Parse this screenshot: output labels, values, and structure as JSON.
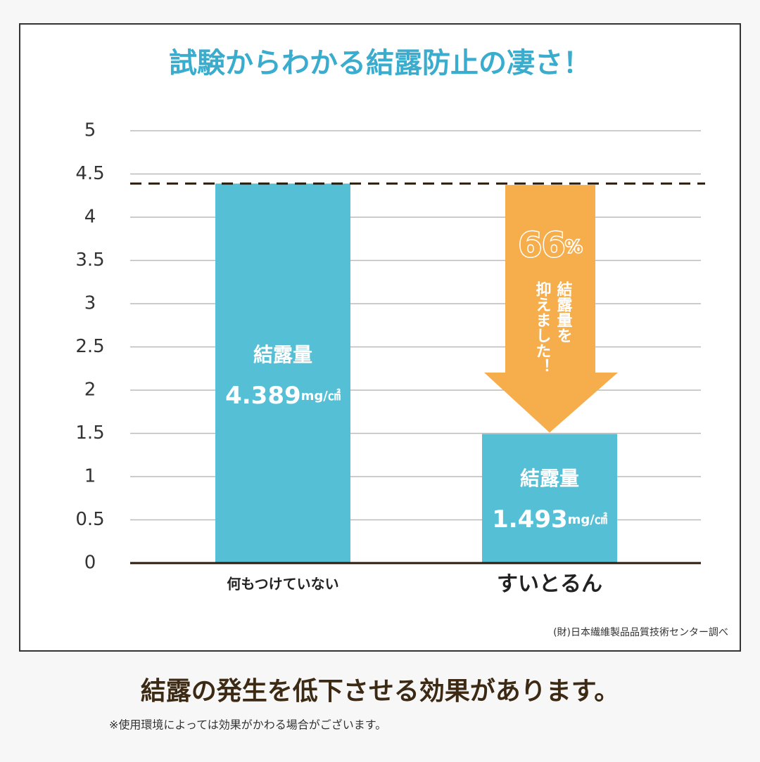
{
  "chart_data": {
    "type": "bar",
    "title": "試験からわかる結露防止の凄さ！",
    "categories": [
      "何もつけていない",
      "すいとるん"
    ],
    "values": [
      4.389,
      1.493
    ],
    "bar_label": "結露量",
    "value_unit": "mg/㎠",
    "color": "#55bfd6",
    "ylim": [
      0,
      5
    ],
    "yticks": [
      0,
      0.5,
      1,
      1.5,
      2,
      2.5,
      3,
      3.5,
      4,
      4.5,
      5
    ],
    "grid": true,
    "annotation": {
      "value": 66,
      "unit": "%",
      "text_lines": [
        "結露量を",
        "抑えました！"
      ],
      "color": "#f6ae4c"
    },
    "source": "(財)日本繊維製品品質技術センター調べ"
  },
  "footer": {
    "headline": "結露の発生を低下させる効果があります。",
    "note": "※使用環境によっては効果がかわる場合がございます。"
  }
}
